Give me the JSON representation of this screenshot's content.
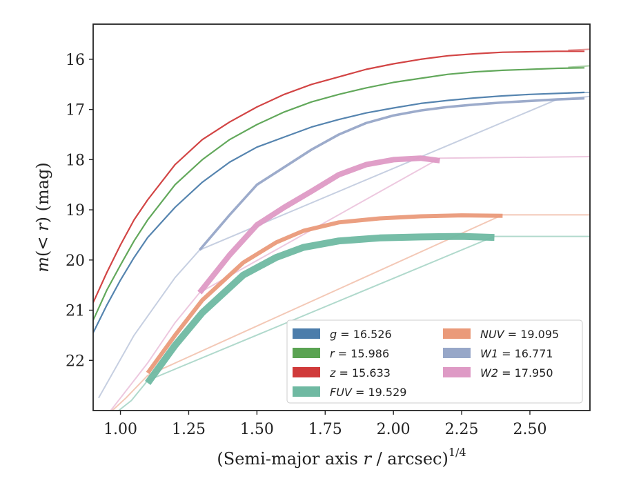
{
  "chart_data": {
    "type": "line",
    "xlabel": "(Semi-major axis r / arcsec)",
    "xlabel_exponent": "1/4",
    "ylabel": "m(< r) (mag)",
    "xlim": [
      0.9,
      2.72
    ],
    "ylim": [
      23.0,
      15.3
    ],
    "y_inverted": true,
    "grid": false,
    "legend_position": "lower-right",
    "xticks": [
      1.0,
      1.25,
      1.5,
      1.75,
      2.0,
      2.25,
      2.5
    ],
    "xtick_labels": [
      "1.00",
      "1.25",
      "1.50",
      "1.75",
      "2.00",
      "2.25",
      "2.50"
    ],
    "yticks": [
      16,
      17,
      18,
      19,
      20,
      21,
      22
    ],
    "ytick_labels": [
      "16",
      "17",
      "18",
      "19",
      "20",
      "21",
      "22"
    ],
    "series": [
      {
        "name": "g = 16.526",
        "var": "g",
        "value": "16.526",
        "color": "#4c7dab",
        "width": 2.2,
        "x": [
          0.9,
          0.95,
          1.0,
          1.05,
          1.1,
          1.2,
          1.3,
          1.4,
          1.5,
          1.6,
          1.7,
          1.8,
          1.9,
          2.0,
          2.1,
          2.2,
          2.3,
          2.4,
          2.5,
          2.6,
          2.7
        ],
        "y": [
          21.45,
          20.9,
          20.4,
          19.95,
          19.55,
          18.95,
          18.45,
          18.05,
          17.75,
          17.55,
          17.35,
          17.2,
          17.07,
          16.97,
          16.88,
          16.82,
          16.77,
          16.73,
          16.7,
          16.68,
          16.66
        ],
        "faint": {
          "x": [
            2.64,
            2.72
          ],
          "y": [
            16.67,
            16.66
          ]
        }
      },
      {
        "name": "r = 15.986",
        "var": "r",
        "value": "15.986",
        "color": "#5aa352",
        "width": 2.2,
        "x": [
          0.9,
          0.95,
          1.0,
          1.05,
          1.1,
          1.2,
          1.3,
          1.4,
          1.5,
          1.6,
          1.7,
          1.8,
          1.9,
          2.0,
          2.1,
          2.2,
          2.3,
          2.4,
          2.5,
          2.6,
          2.7
        ],
        "y": [
          21.2,
          20.6,
          20.1,
          19.62,
          19.2,
          18.5,
          18.0,
          17.6,
          17.3,
          17.05,
          16.85,
          16.7,
          16.57,
          16.46,
          16.38,
          16.3,
          16.25,
          16.22,
          16.2,
          16.18,
          16.17
        ],
        "faint": {
          "x": [
            2.64,
            2.72
          ],
          "y": [
            16.16,
            16.13
          ]
        }
      },
      {
        "name": "z = 15.633",
        "var": "z",
        "value": "15.633",
        "color": "#d03a3a",
        "width": 2.2,
        "x": [
          0.9,
          0.95,
          1.0,
          1.05,
          1.1,
          1.2,
          1.3,
          1.4,
          1.5,
          1.6,
          1.7,
          1.8,
          1.9,
          2.0,
          2.1,
          2.2,
          2.3,
          2.4,
          2.5,
          2.6,
          2.7
        ],
        "y": [
          20.85,
          20.25,
          19.7,
          19.2,
          18.8,
          18.1,
          17.6,
          17.25,
          16.95,
          16.7,
          16.5,
          16.35,
          16.2,
          16.09,
          16.0,
          15.93,
          15.89,
          15.86,
          15.85,
          15.84,
          15.84
        ],
        "faint": {
          "x": [
            2.64,
            2.72
          ],
          "y": [
            15.82,
            15.8
          ]
        }
      },
      {
        "name": "FUV = 19.529",
        "var": "FUV",
        "value": "19.529",
        "color": "#6fb9a2",
        "width": 10,
        "x": [
          1.1,
          1.2,
          1.3,
          1.45,
          1.57,
          1.67,
          1.8,
          1.95,
          2.1,
          2.25,
          2.37
        ],
        "y": [
          22.45,
          21.7,
          21.05,
          20.3,
          19.95,
          19.75,
          19.62,
          19.56,
          19.54,
          19.53,
          19.55
        ],
        "faint": {
          "x": [
            0.97,
            1.04,
            1.1,
            2.37,
            2.72
          ],
          "y": [
            23.1,
            22.8,
            22.4,
            19.53,
            19.53
          ]
        }
      },
      {
        "name": "NUV = 19.095",
        "var": "NUV",
        "value": "19.095",
        "color": "#ea9a7a",
        "width": 6,
        "x": [
          1.1,
          1.2,
          1.3,
          1.45,
          1.57,
          1.67,
          1.8,
          1.95,
          2.1,
          2.25,
          2.4
        ],
        "y": [
          22.25,
          21.5,
          20.8,
          20.05,
          19.65,
          19.42,
          19.25,
          19.17,
          19.13,
          19.11,
          19.12
        ],
        "faint": {
          "x": [
            0.95,
            1.02,
            1.1,
            2.4,
            2.72
          ],
          "y": [
            23.1,
            22.75,
            22.3,
            19.1,
            19.1
          ]
        }
      },
      {
        "name": "W1 = 16.771",
        "var": "W1",
        "value": "16.771",
        "color": "#97a7c8",
        "width": 3.6,
        "x": [
          1.29,
          1.4,
          1.5,
          1.6,
          1.7,
          1.8,
          1.9,
          2.0,
          2.1,
          2.2,
          2.3,
          2.4,
          2.5,
          2.6,
          2.7
        ],
        "y": [
          19.8,
          19.1,
          18.5,
          18.15,
          17.8,
          17.5,
          17.27,
          17.12,
          17.02,
          16.95,
          16.9,
          16.86,
          16.83,
          16.8,
          16.78
        ],
        "faint": {
          "x": [
            0.92,
            1.05,
            1.2,
            1.29,
            2.6,
            2.72
          ],
          "y": [
            22.75,
            21.5,
            20.35,
            19.8,
            16.8,
            16.74
          ]
        }
      },
      {
        "name": "W2 = 17.950",
        "var": "W2",
        "value": "17.950",
        "color": "#de9ac5",
        "width": 8,
        "x": [
          1.29,
          1.4,
          1.5,
          1.6,
          1.7,
          1.8,
          1.9,
          2.0,
          2.1,
          2.17
        ],
        "y": [
          20.65,
          19.9,
          19.3,
          18.95,
          18.63,
          18.3,
          18.1,
          18.0,
          17.97,
          18.02
        ],
        "faint": {
          "x": [
            0.95,
            1.1,
            1.2,
            1.29,
            2.17,
            2.72
          ],
          "y": [
            23.1,
            22.05,
            21.25,
            20.65,
            17.97,
            17.94
          ]
        }
      }
    ]
  }
}
